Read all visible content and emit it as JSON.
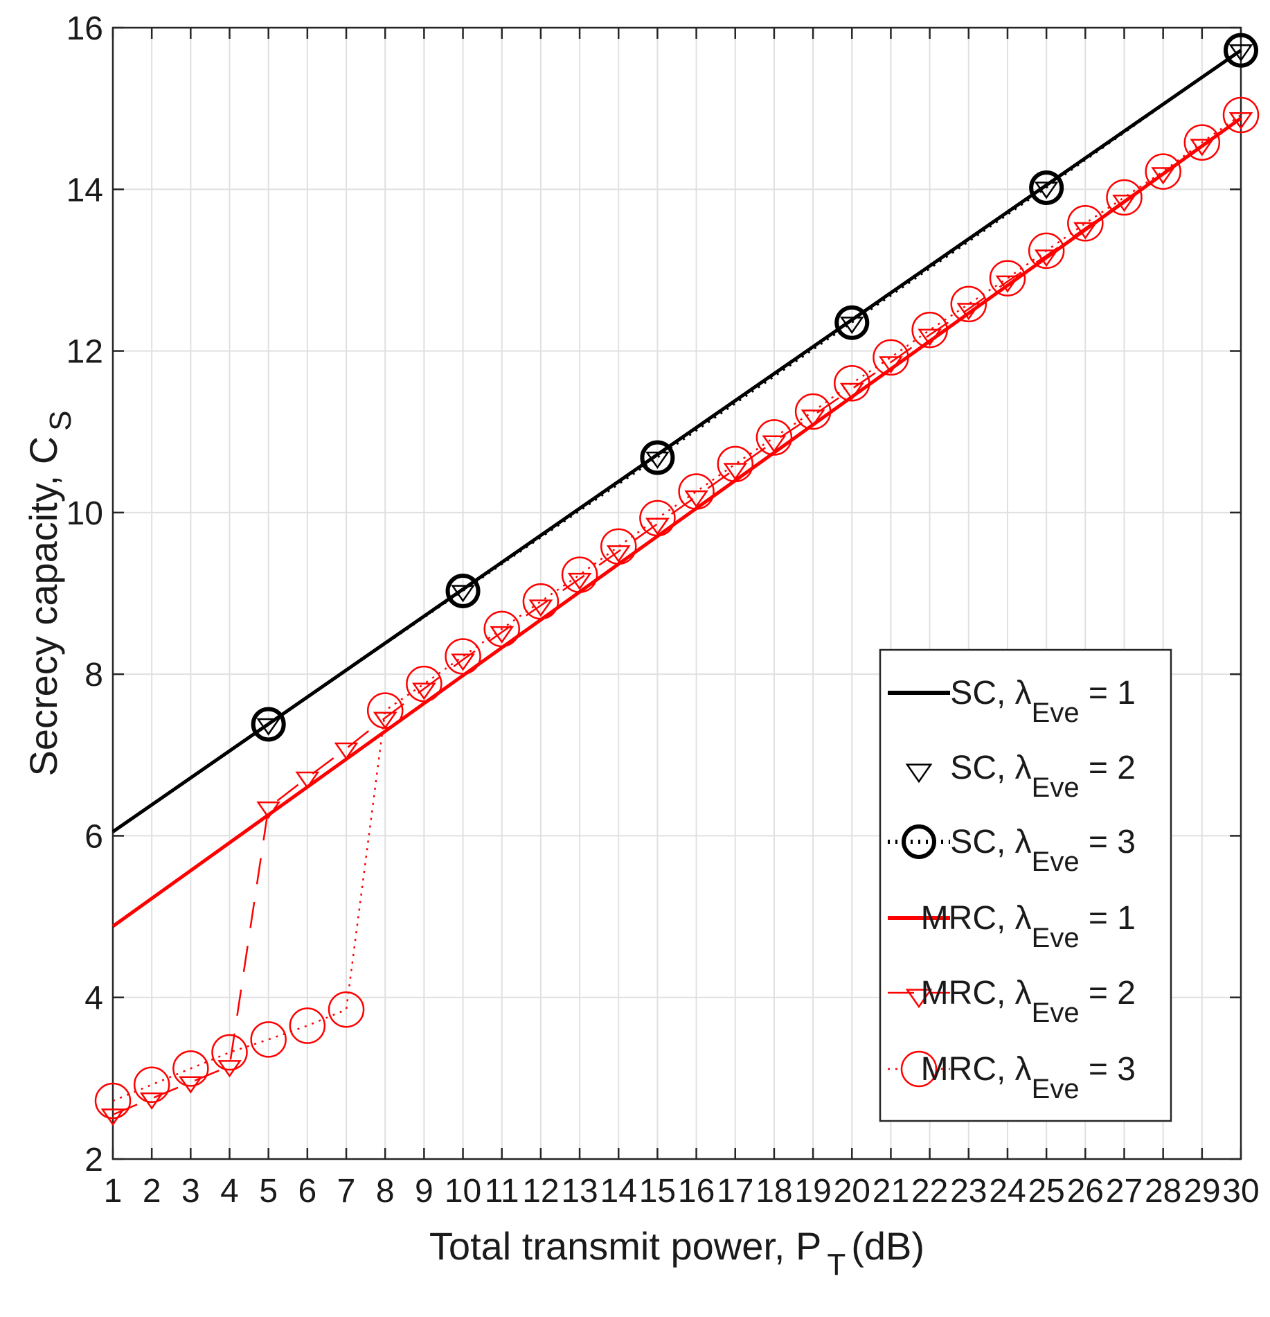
{
  "chart_data": {
    "type": "line",
    "title": "",
    "xlabel": "Total transmit power, P",
    "xlabel_sub": "T",
    "xlabel_unit": "(dB)",
    "ylabel": "Secrecy capacity, C",
    "ylabel_sub": "S",
    "xlim": [
      1,
      30
    ],
    "ylim": [
      2,
      16
    ],
    "x_ticks": [
      1,
      2,
      3,
      4,
      5,
      6,
      7,
      8,
      9,
      10,
      11,
      12,
      13,
      14,
      15,
      16,
      17,
      18,
      19,
      20,
      21,
      22,
      23,
      24,
      25,
      26,
      27,
      28,
      29,
      30
    ],
    "y_ticks": [
      2,
      4,
      6,
      8,
      10,
      12,
      14,
      16
    ],
    "grid": true,
    "legend_position": "bottom-right",
    "series": [
      {
        "name": "SC, λ",
        "name_sub": "Eve",
        "name_suffix": " = 1",
        "color": "#000000",
        "line": "solid",
        "marker": "none",
        "x": [
          1,
          30
        ],
        "y": [
          6.05,
          15.72
        ]
      },
      {
        "name": "SC, λ",
        "name_sub": "Eve",
        "name_suffix": " = 2",
        "color": "#000000",
        "line": "none",
        "marker": "triangle-down",
        "x": [
          5,
          10,
          15,
          20,
          25,
          30
        ],
        "y": [
          7.38,
          9.03,
          10.68,
          12.35,
          14.02,
          15.72
        ]
      },
      {
        "name": "SC, λ",
        "name_sub": "Eve",
        "name_suffix": " = 3",
        "color": "#000000",
        "line": "dotted",
        "marker": "circle",
        "x": [
          5,
          10,
          15,
          20,
          25,
          30
        ],
        "y": [
          7.38,
          9.03,
          10.68,
          12.35,
          14.02,
          15.72
        ]
      },
      {
        "name": "MRC, λ",
        "name_sub": "Eve",
        "name_suffix": " = 1",
        "color": "#ff0000",
        "line": "solid",
        "marker": "none",
        "x": [
          1,
          30
        ],
        "y": [
          4.88,
          14.88
        ]
      },
      {
        "name": "MRC, λ",
        "name_sub": "Eve",
        "name_suffix": " = 2",
        "color": "#ff0000",
        "line": "dashed",
        "marker": "triangle-down",
        "x": [
          1,
          2,
          3,
          4,
          5,
          6,
          7,
          8,
          9,
          10,
          11,
          12,
          13,
          14,
          15,
          16,
          17,
          18,
          19,
          20,
          21,
          22,
          23,
          24,
          25,
          26,
          27,
          28,
          29,
          30
        ],
        "y": [
          2.55,
          2.75,
          2.95,
          3.15,
          6.35,
          6.72,
          7.08,
          7.46,
          7.82,
          8.18,
          8.52,
          8.85,
          9.18,
          9.52,
          9.86,
          10.2,
          10.54,
          10.88,
          11.2,
          11.53,
          11.86,
          12.2,
          12.52,
          12.86,
          13.18,
          13.52,
          13.86,
          14.2,
          14.55,
          14.88
        ]
      },
      {
        "name": "MRC, λ",
        "name_sub": "Eve",
        "name_suffix": " = 3",
        "color": "#ff0000",
        "line": "dotted",
        "marker": "circle",
        "x": [
          1,
          2,
          3,
          4,
          5,
          6,
          7,
          8,
          9,
          10,
          11,
          12,
          13,
          14,
          15,
          16,
          17,
          18,
          19,
          20,
          21,
          22,
          23,
          24,
          25,
          26,
          27,
          28,
          29,
          30
        ],
        "y": [
          2.72,
          2.92,
          3.12,
          3.32,
          3.48,
          3.65,
          3.85,
          7.55,
          7.88,
          8.22,
          8.56,
          8.9,
          9.23,
          9.58,
          9.93,
          10.26,
          10.6,
          10.93,
          11.25,
          11.6,
          11.92,
          12.26,
          12.58,
          12.9,
          13.24,
          13.58,
          13.9,
          14.22,
          14.58,
          14.92
        ]
      }
    ]
  }
}
